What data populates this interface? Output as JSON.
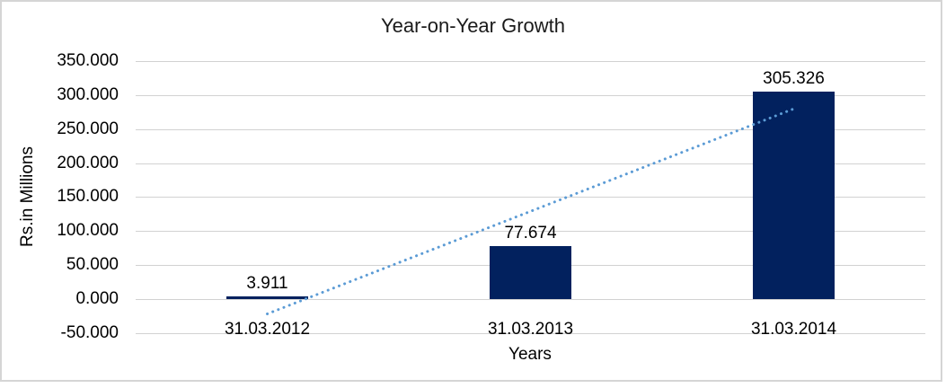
{
  "chart_data": {
    "type": "bar",
    "title": "Year-on-Year Growth",
    "xlabel": "Years",
    "ylabel": "Rs.in Millions",
    "categories": [
      "31.03.2012",
      "31.03.2013",
      "31.03.2014"
    ],
    "values": [
      3.911,
      77.674,
      305.326
    ],
    "data_labels": [
      "3.911",
      "77.674",
      "305.326"
    ],
    "ytick_labels": [
      "350.000",
      "300.000",
      "250.000",
      "200.000",
      "150.000",
      "100.000",
      "50.000",
      "0.000",
      "-50.000"
    ],
    "ylim": [
      -50,
      350
    ],
    "ytick_step": 50,
    "grid": true,
    "legend": "none",
    "trendline": {
      "type": "linear",
      "style": "dotted"
    },
    "colors": {
      "bar": "#02215E",
      "trendline": "#5B9BD5",
      "gridline": "#D2D2D2",
      "border": "#D5D5D5",
      "text": "#000000"
    }
  }
}
